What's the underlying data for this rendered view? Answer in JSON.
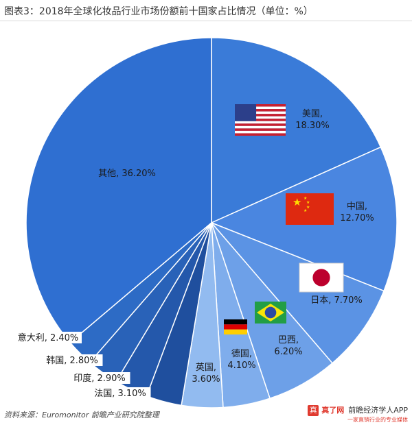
{
  "title": "图表3：2018年全球化妆品行业市场份额前十国家占比情况（单位：%）",
  "source": "资料来源：Euromonitor 前瞻产业研究院整理",
  "brand": {
    "logo_text": "真",
    "watermark": "真了网",
    "name": "前瞻经济学人APP",
    "tagline": "一家直销行业的专业媒体"
  },
  "colors": {
    "dark": "#2f6fd1",
    "medium": "#4a86e0",
    "light": "#8fb6ec",
    "darkest": "#1f4f9e"
  },
  "chart_data": {
    "type": "pie",
    "title": "图表3：2018年全球化妆品行业市场份额前十国家占比情况（单位：%）",
    "unit": "%",
    "slices": [
      {
        "name": "美国",
        "value": 18.3,
        "label": "美国,\n18.30%",
        "color": "#3a7bd8",
        "flag": "us-flag-icon"
      },
      {
        "name": "中国",
        "value": 12.7,
        "label": "中国,\n12.70%",
        "color": "#4a86e0",
        "flag": "cn-flag-icon"
      },
      {
        "name": "日本",
        "value": 7.7,
        "label": "日本, 7.70%",
        "color": "#5b93e4",
        "flag": "jp-flag-icon"
      },
      {
        "name": "巴西",
        "value": 6.2,
        "label": "巴西,\n6.20%",
        "color": "#6da0e8",
        "flag": "br-flag-icon"
      },
      {
        "name": "德国",
        "value": 4.1,
        "label": "德国,\n4.10%",
        "color": "#7fadec",
        "flag": "de-flag-icon"
      },
      {
        "name": "英国",
        "value": 3.6,
        "label": "英国,\n3.60%",
        "color": "#92bbf0",
        "flag": ""
      },
      {
        "name": "法国",
        "value": 3.1,
        "label": "法国, 3.10%",
        "color": "#1f4f9e",
        "flag": ""
      },
      {
        "name": "印度",
        "value": 2.9,
        "label": "印度, 2.90%",
        "color": "#2458ab",
        "flag": ""
      },
      {
        "name": "韩国",
        "value": 2.8,
        "label": "韩国, 2.80%",
        "color": "#2962b8",
        "flag": ""
      },
      {
        "name": "意大利",
        "value": 2.4,
        "label": "意大利, 2.40%",
        "color": "#2d6bc5",
        "flag": ""
      },
      {
        "name": "其他",
        "value": 36.2,
        "label": "其他, 36.20%",
        "color": "#2f6fd1",
        "flag": ""
      }
    ]
  }
}
